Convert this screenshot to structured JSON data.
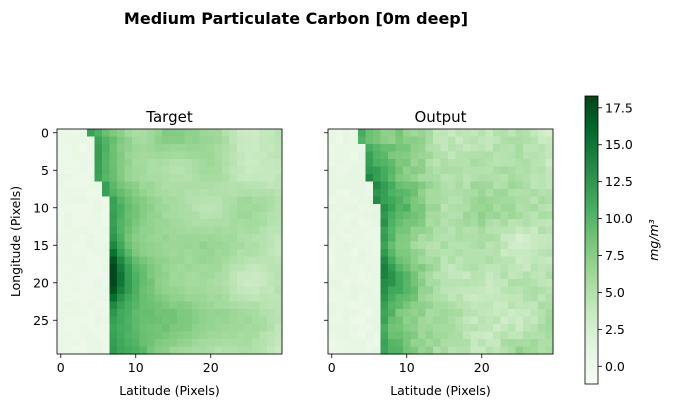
{
  "title": "Medium Particulate Carbon [0m deep]",
  "colorbar": {
    "label": "mg/m³",
    "colormap": "Greens",
    "vmin": -1.2,
    "vmax": 18.3,
    "ticks": [
      "0.0",
      "2.5",
      "5.0",
      "7.5",
      "10.0",
      "12.5",
      "15.0",
      "17.5"
    ],
    "colors": [
      "#f7fcf5",
      "#e5f5e0",
      "#c7e9c0",
      "#a1d99b",
      "#74c476",
      "#41ab5d",
      "#238b45",
      "#006d2c",
      "#00441b"
    ]
  },
  "chart_data": [
    {
      "type": "heatmap",
      "title": "Target",
      "xlabel": "Latitude (Pixels)",
      "ylabel": "Longitude (Pixels)",
      "xticks": [
        "0",
        "10",
        "20"
      ],
      "yticks": [
        "0",
        "5",
        "10",
        "15",
        "20",
        "25"
      ],
      "grid_size": [
        30,
        30
      ],
      "coast_boundary_column_by_row": [
        4,
        5,
        5,
        5,
        5,
        5,
        5,
        6,
        6,
        7,
        7,
        7,
        7,
        7,
        7,
        7,
        7,
        7,
        7,
        7,
        7,
        7,
        7,
        7,
        7,
        7,
        7,
        7,
        7,
        7
      ],
      "land_value": 0.0,
      "water_typical_value": 7.5,
      "max_value": 18.0
    },
    {
      "type": "heatmap",
      "title": "Output",
      "xlabel": "Latitude (Pixels)",
      "xticks": [
        "0",
        "10",
        "20"
      ],
      "grid_size": [
        30,
        30
      ],
      "coast_boundary_column_by_row": [
        4,
        4,
        5,
        5,
        5,
        5,
        5,
        6,
        6,
        6,
        7,
        7,
        7,
        7,
        7,
        7,
        7,
        7,
        7,
        7,
        7,
        7,
        7,
        7,
        7,
        7,
        7,
        7,
        7,
        7
      ],
      "land_value": 0.3,
      "water_typical_value": 7.0,
      "max_value": 14.5
    }
  ]
}
